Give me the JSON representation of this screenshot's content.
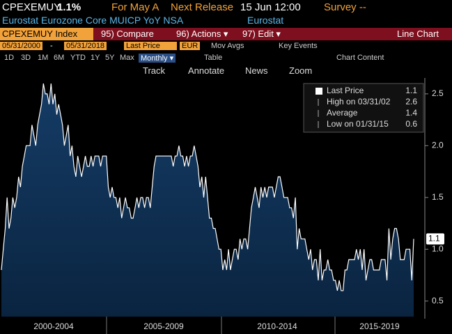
{
  "header": {
    "ticker": "CPEXEMUY",
    "last": "1.1%",
    "period": "For May A",
    "next_release_label": "Next Release",
    "next_release": "15 Jun 12:00",
    "survey": "Survey --",
    "description": "Eurostat Eurozone Core MUICP YoY NSA",
    "source": "Eurostat"
  },
  "toolbar": {
    "security": "CPEXEMUY Index",
    "compare": "95) Compare",
    "actions": "96) Actions ▾",
    "edit": "97) Edit ▾",
    "view": "Line Chart"
  },
  "controls": {
    "start": "05/31/2000",
    "dash": "-",
    "end": "05/31/2018",
    "field": "Last Price",
    "currency": "EUR",
    "mov_avgs": "Mov Avgs",
    "key_events": "Key Events",
    "periods": [
      "1D",
      "3D",
      "1M",
      "6M",
      "YTD",
      "1Y",
      "5Y",
      "Max"
    ],
    "frequency": "Monthly ▾",
    "table": "Table",
    "chart_content": "Chart Content",
    "tools": [
      "Track",
      "Annotate",
      "News",
      "Zoom"
    ]
  },
  "legend": [
    {
      "name": "Last Price",
      "value": "1.1"
    },
    {
      "name": "High on 03/31/02",
      "value": "2.6"
    },
    {
      "name": "Average",
      "value": "1.4"
    },
    {
      "name": "Low on 01/31/15",
      "value": "0.6"
    }
  ],
  "chart_data": {
    "type": "area",
    "color": "#ffffff",
    "fill": "#0f3358",
    "period_labels": [
      "2000-2004",
      "2005-2009",
      "2010-2014",
      "2015-2019"
    ],
    "values": [
      0.8,
      1.0,
      1.2,
      1.5,
      1.2,
      1.3,
      1.5,
      1.4,
      1.5,
      1.7,
      1.6,
      1.8,
      1.9,
      2.0,
      2.0,
      2.0,
      2.2,
      2.1,
      2.0,
      2.2,
      2.3,
      2.4,
      2.6,
      2.5,
      2.5,
      2.4,
      2.6,
      2.4,
      2.5,
      2.3,
      2.4,
      2.3,
      2.2,
      2.0,
      2.1,
      2.2,
      1.9,
      2.0,
      1.8,
      1.7,
      1.9,
      1.8,
      1.7,
      1.8,
      1.9,
      1.8,
      1.8,
      1.9,
      1.8,
      1.9,
      1.9,
      1.9,
      1.8,
      1.9,
      1.9,
      1.9,
      1.6,
      1.5,
      1.6,
      1.5,
      1.5,
      1.4,
      1.5,
      1.3,
      1.4,
      1.5,
      1.4,
      1.4,
      1.3,
      1.3,
      1.4,
      1.5,
      1.4,
      1.5,
      1.5,
      1.4,
      1.5,
      1.5,
      1.4,
      1.6,
      1.8,
      1.9,
      1.9,
      1.9,
      1.9,
      1.9,
      1.9,
      1.9,
      1.9,
      1.9,
      1.8,
      1.9,
      1.9,
      2.0,
      1.9,
      1.9,
      1.8,
      1.9,
      1.8,
      1.9,
      1.9,
      2.0,
      1.9,
      1.8,
      1.6,
      1.7,
      1.5,
      1.7,
      1.5,
      1.3,
      1.3,
      1.2,
      1.2,
      1.1,
      1.0,
      1.0,
      0.8,
      0.9,
      0.8,
      1.0,
      0.8,
      0.9,
      1.0,
      1.0,
      0.9,
      1.1,
      1.0,
      1.1,
      1.1,
      1.0,
      1.2,
      1.4,
      1.5,
      1.6,
      1.5,
      1.4,
      1.6,
      1.5,
      1.6,
      1.5,
      1.6,
      1.6,
      1.6,
      1.5,
      1.6,
      1.7,
      1.7,
      1.6,
      1.5,
      1.5,
      1.5,
      1.4,
      1.4,
      1.3,
      1.5,
      1.0,
      1.2,
      1.1,
      1.1,
      1.1,
      1.0,
      0.9,
      1.0,
      0.8,
      0.9,
      0.9,
      0.7,
      1.0,
      0.7,
      0.8,
      0.8,
      0.9,
      0.8,
      0.8,
      0.7,
      0.7,
      0.6,
      0.7,
      0.6,
      0.6,
      0.8,
      0.8,
      0.9,
      0.9,
      0.9,
      0.9,
      1.0,
      0.9,
      1.0,
      0.8,
      1.0,
      0.7,
      0.8,
      0.9,
      0.9,
      0.8,
      0.8,
      0.8,
      0.8,
      0.9,
      0.9,
      0.9,
      0.7,
      1.2,
      0.9,
      1.1,
      1.2,
      1.2,
      1.1,
      0.9,
      0.9,
      0.9,
      1.0,
      1.0,
      1.0,
      0.7,
      1.1
    ],
    "last_label": {
      "value": 1.1,
      "label": "1.1"
    },
    "ylim": [
      0.35,
      2.62
    ],
    "yticks": [
      0.5,
      {
        "value": 1,
        "label": "1.0"
      },
      1.5,
      {
        "value": 2,
        "label": "2.0"
      },
      2.5
    ],
    "grid": false
  }
}
